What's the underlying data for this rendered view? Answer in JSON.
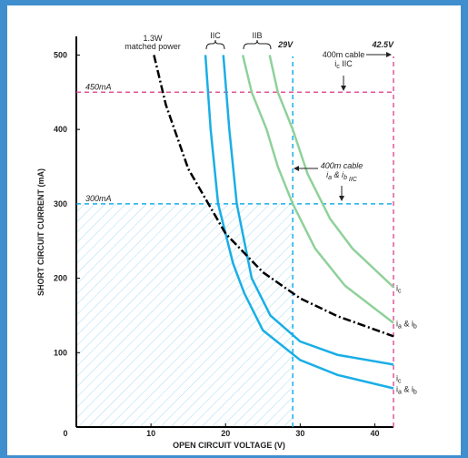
{
  "chart_data": {
    "type": "line",
    "xlabel": "OPEN CIRCUIT VOLTAGE (V)",
    "ylabel": "SHORT CIRCUIT CURRENT  (mA)",
    "xlim": [
      0,
      42.5
    ],
    "ylim": [
      0,
      525
    ],
    "xticks": [
      0,
      10,
      20,
      30,
      40
    ],
    "yticks": [
      100,
      200,
      300,
      400,
      500
    ],
    "series": [
      {
        "label": [
          {
            "t": "i"
          },
          {
            "sub": "c"
          }
        ],
        "color": "#1aaee6",
        "x": [
          19.7,
          20.5,
          21.5,
          23.5,
          26,
          30,
          35,
          42.5
        ],
        "values": [
          500,
          400,
          300,
          200,
          150,
          115,
          97,
          84
        ]
      },
      {
        "label": [
          {
            "t": "i"
          },
          {
            "sub": "a"
          },
          {
            "t": " & i"
          },
          {
            "sub": "b"
          }
        ],
        "color": "#1aaee6",
        "x": [
          17.3,
          18,
          19,
          21,
          22.5,
          25,
          30,
          35,
          42.5
        ],
        "values": [
          500,
          400,
          300,
          220,
          180,
          130,
          90,
          70,
          52
        ]
      },
      {
        "label": [
          {
            "t": "i"
          },
          {
            "sub": "c"
          }
        ],
        "color": "#8fd19a",
        "x": [
          25.9,
          27,
          29,
          31,
          34,
          37,
          42.5
        ],
        "values": [
          500,
          450,
          400,
          340,
          280,
          240,
          188
        ]
      },
      {
        "label": [
          {
            "t": "i"
          },
          {
            "sub": "a"
          },
          {
            "t": " & i"
          },
          {
            "sub": "b"
          }
        ],
        "color": "#8fd19a",
        "x": [
          22.3,
          23.5,
          25.5,
          27,
          29,
          32,
          36,
          42.5
        ],
        "values": [
          500,
          450,
          400,
          350,
          300,
          240,
          190,
          140
        ]
      },
      {
        "label": [
          "1.3W",
          "matched power"
        ],
        "color": "#000000",
        "dash": true,
        "x": [
          10.4,
          12,
          15,
          20,
          25,
          30,
          35,
          42.5
        ],
        "values": [
          500,
          433,
          347,
          260,
          208,
          173,
          149,
          122
        ]
      }
    ],
    "reference_lines": [
      {
        "axis": "x",
        "value": 29,
        "label": "29V",
        "color": "#1aaee6"
      },
      {
        "axis": "x",
        "value": 42.5,
        "label": "42.5V",
        "color": "#e0569a"
      },
      {
        "axis": "y",
        "value": 300,
        "label": "300mA",
        "color": "#1aaee6"
      },
      {
        "axis": "y",
        "value": 450,
        "label": "450mA",
        "color": "#e0569a"
      }
    ],
    "groups": [
      "IIC",
      "IIB"
    ],
    "cable_notes": [
      [
        [
          {
            "t": "400m cable"
          }
        ],
        [
          {
            "t": "i"
          },
          {
            "sub": "c"
          },
          {
            "t": " IIC"
          }
        ]
      ],
      [
        [
          {
            "t": "400m cable"
          }
        ],
        [
          {
            "t": "i"
          },
          {
            "sub": "a"
          },
          {
            "t": " & i"
          },
          {
            "sub": "b"
          },
          {
            "sub": " IIC"
          }
        ]
      ]
    ]
  }
}
